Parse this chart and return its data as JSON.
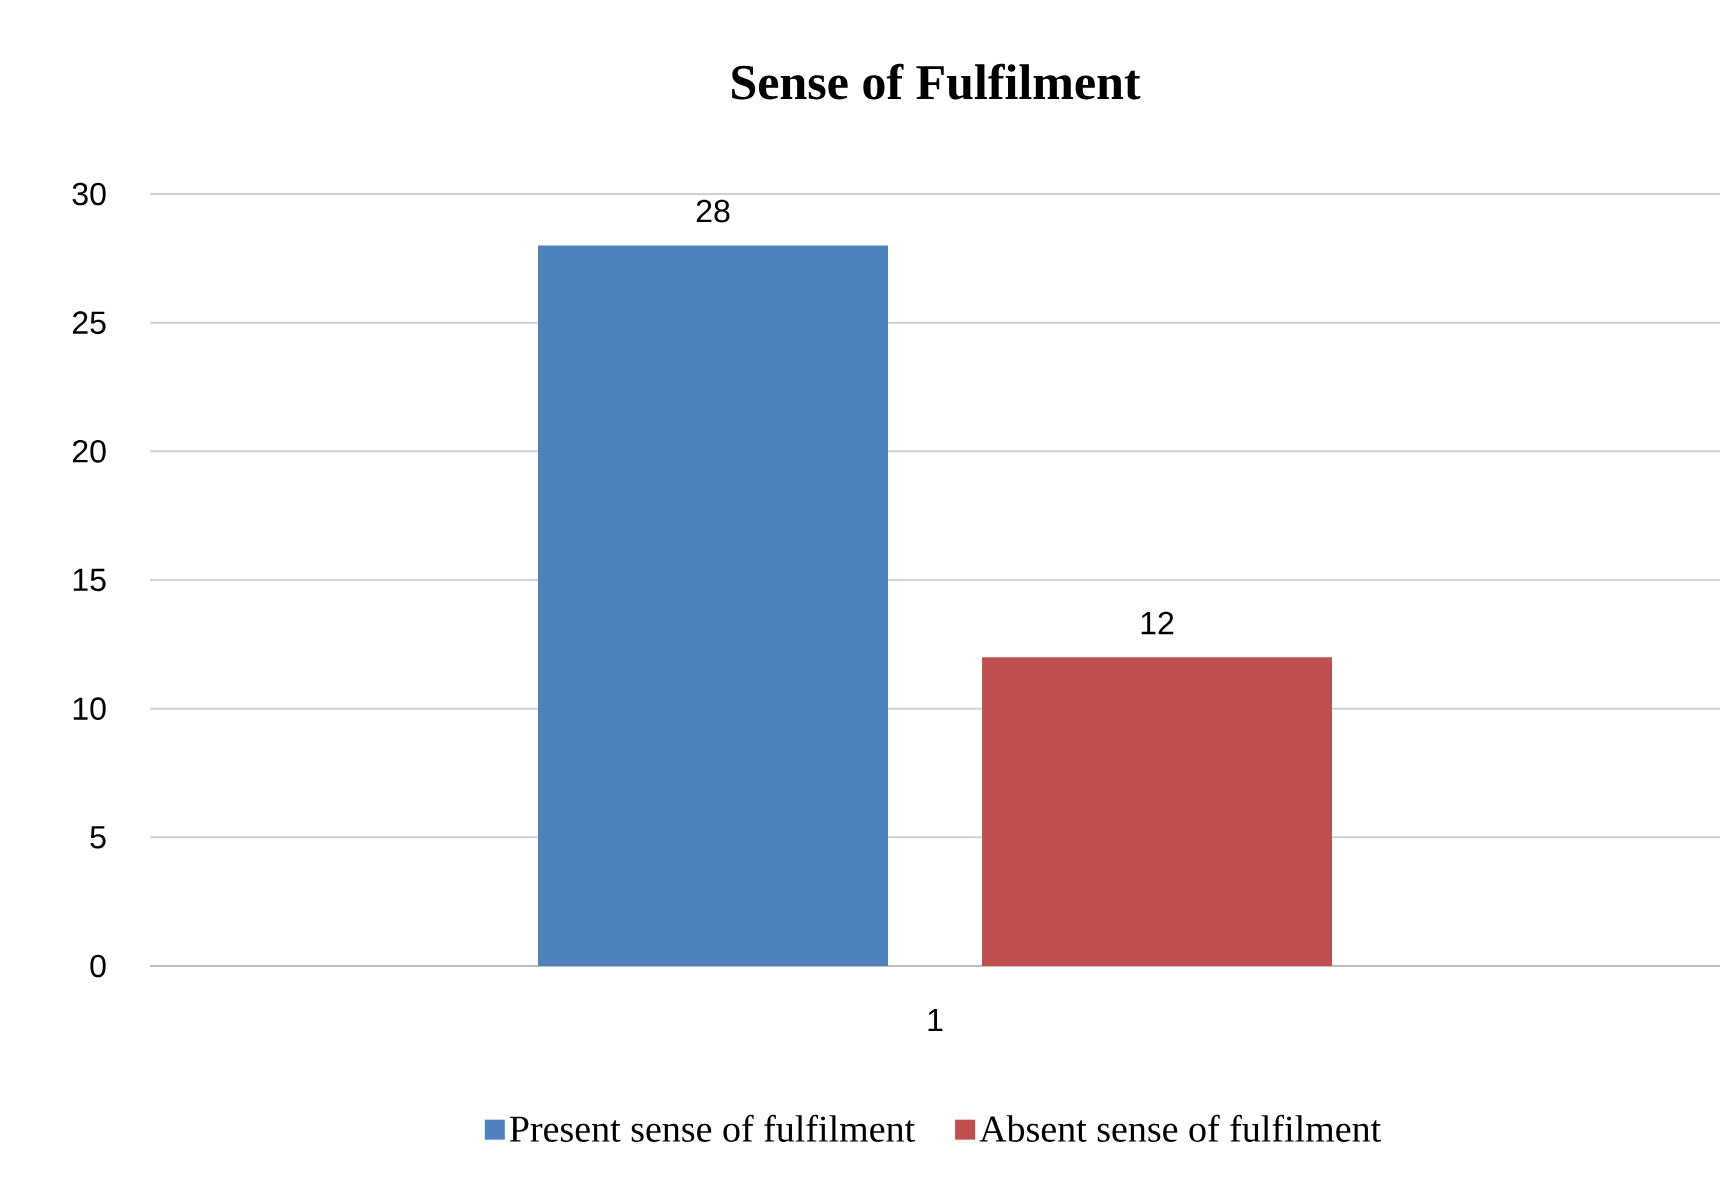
{
  "chart_data": {
    "type": "bar",
    "title": "Sense of Fulfilment",
    "categories": [
      "1"
    ],
    "series": [
      {
        "name": "Present sense of fulfilment",
        "color": "#4f81bd",
        "values": [
          28
        ]
      },
      {
        "name": "Absent  sense of fulfilment",
        "color": "#c0504d",
        "values": [
          12
        ]
      }
    ],
    "ylim": [
      0,
      30
    ],
    "yticks": [
      0,
      5,
      10,
      15,
      20,
      25,
      30
    ],
    "grid": "y",
    "data_labels": true,
    "legend": "bottom"
  }
}
